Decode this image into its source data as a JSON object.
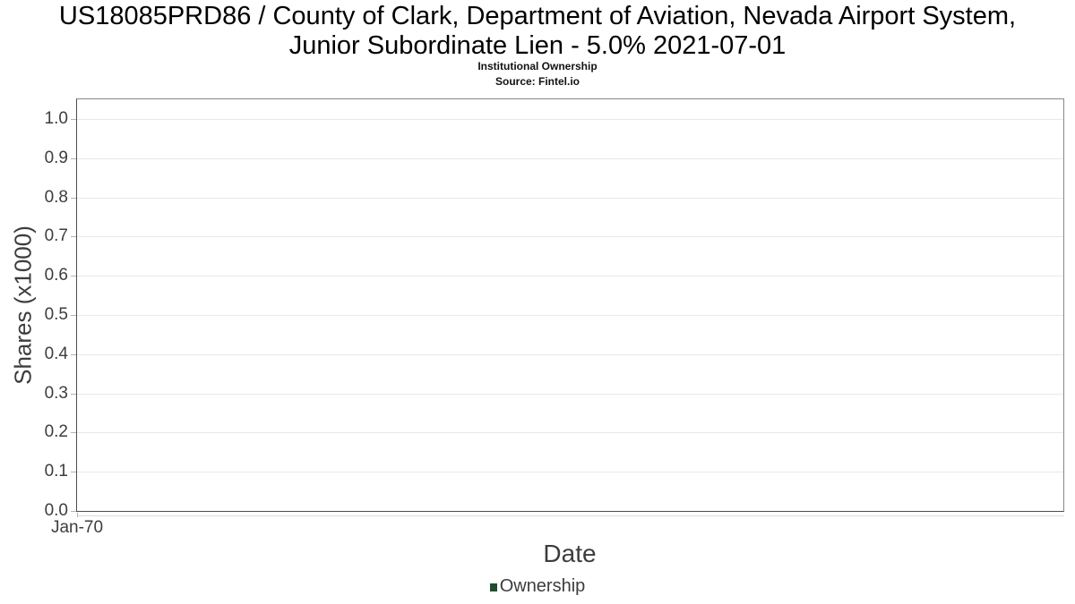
{
  "header": {
    "title_line1": "US18085PRD86 / County of Clark, Department of Aviation, Nevada Airport System,",
    "title_line2": "Junior Subordinate Lien - 5.0% 2021-07-01",
    "subtitle": "Institutional Ownership",
    "source": "Source: Fintel.io"
  },
  "chart_data": {
    "type": "line",
    "title": "US18085PRD86 / County of Clark, Department of Aviation, Nevada Airport System, Junior Subordinate Lien - 5.0% 2021-07-01",
    "subtitle": "Institutional Ownership",
    "source_note": "Source: Fintel.io",
    "xlabel": "Date",
    "ylabel": "Shares (x1000)",
    "x_tick_labels": [
      "Jan-70"
    ],
    "y_tick_labels": [
      "0.0",
      "0.1",
      "0.2",
      "0.3",
      "0.4",
      "0.5",
      "0.6",
      "0.7",
      "0.8",
      "0.9",
      "1.0"
    ],
    "ylim": [
      0,
      1.05
    ],
    "grid": true,
    "legend_position": "bottom",
    "series": [
      {
        "name": "Ownership",
        "color": "#1f4e2c",
        "x": [],
        "values": []
      }
    ]
  },
  "legend": {
    "items": [
      {
        "label": "Ownership",
        "color": "#1f4e2c"
      }
    ]
  },
  "colors": {
    "background": "#ffffff",
    "title_text": "#000000",
    "tick_label": "#3d3d3d",
    "axis_title": "#3d3d3d",
    "plot_border_light": "#878787",
    "plot_border_dark": "#4d4d4d",
    "gridline": "#e8e8e8",
    "tick_mark": "#b3b3b3",
    "legend_marker": "#1f4e2c"
  }
}
